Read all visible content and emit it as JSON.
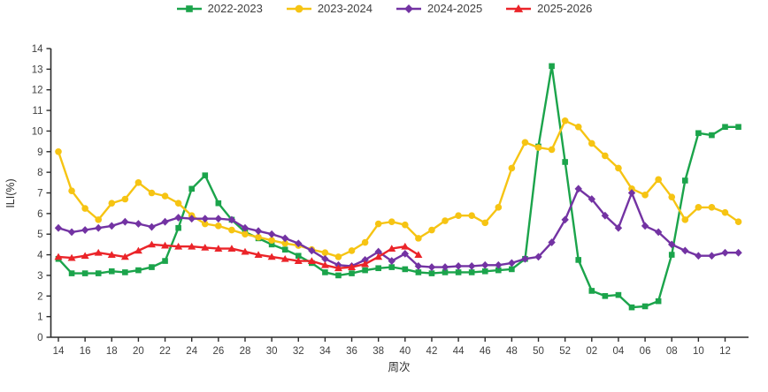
{
  "chart_data": {
    "type": "line",
    "title": "",
    "xlabel": "周次",
    "ylabel": "ILI(%)",
    "ylim": [
      0,
      14
    ],
    "y_tick_step": 1,
    "grid": false,
    "legend_position": "top",
    "x_labeled_every": "even week numbers",
    "categories": [
      "14",
      "15",
      "16",
      "17",
      "18",
      "19",
      "20",
      "21",
      "22",
      "23",
      "24",
      "25",
      "26",
      "27",
      "28",
      "29",
      "30",
      "31",
      "32",
      "33",
      "34",
      "35",
      "36",
      "37",
      "38",
      "39",
      "40",
      "41",
      "42",
      "43",
      "44",
      "45",
      "46",
      "47",
      "48",
      "49",
      "50",
      "51",
      "52",
      "01",
      "02",
      "03",
      "04",
      "05",
      "06",
      "07",
      "08",
      "09",
      "10",
      "11",
      "12",
      "13"
    ],
    "series": [
      {
        "name": "2022-2023",
        "color": "#1BA44B",
        "marker": "square",
        "values": [
          3.8,
          3.1,
          3.1,
          3.1,
          3.2,
          3.15,
          3.25,
          3.4,
          3.7,
          5.3,
          7.2,
          7.85,
          6.5,
          5.7,
          5.1,
          4.8,
          4.5,
          4.25,
          3.95,
          3.6,
          3.15,
          3.0,
          3.1,
          3.25,
          3.35,
          3.4,
          3.3,
          3.15,
          3.1,
          3.15,
          3.15,
          3.15,
          3.2,
          3.25,
          3.3,
          3.8,
          9.25,
          13.15,
          8.5,
          3.75,
          2.25,
          2.0,
          2.05,
          1.45,
          1.5,
          1.75,
          4.0,
          7.6,
          9.9,
          9.8,
          10.2,
          10.2
        ]
      },
      {
        "name": "2023-2024",
        "color": "#F6C413",
        "marker": "circle",
        "values": [
          9.0,
          7.1,
          6.25,
          5.7,
          6.5,
          6.7,
          7.5,
          7.0,
          6.85,
          6.5,
          5.9,
          5.5,
          5.4,
          5.2,
          5.0,
          4.85,
          4.7,
          4.55,
          4.45,
          4.25,
          4.1,
          3.9,
          4.2,
          4.6,
          5.5,
          5.6,
          5.45,
          4.8,
          5.2,
          5.65,
          5.9,
          5.9,
          5.55,
          6.3,
          8.2,
          9.45,
          9.2,
          9.1,
          10.5,
          10.2,
          9.4,
          8.8,
          8.2,
          7.2,
          6.9,
          7.65,
          6.8,
          5.7,
          6.3,
          6.3,
          6.05,
          5.6
        ]
      },
      {
        "name": "2024-2025",
        "color": "#7333A3",
        "marker": "diamond",
        "values": [
          5.3,
          5.1,
          5.2,
          5.3,
          5.4,
          5.6,
          5.5,
          5.35,
          5.6,
          5.8,
          5.75,
          5.75,
          5.75,
          5.7,
          5.3,
          5.15,
          5.0,
          4.8,
          4.55,
          4.2,
          3.8,
          3.5,
          3.45,
          3.75,
          4.15,
          3.7,
          4.05,
          3.45,
          3.4,
          3.4,
          3.45,
          3.45,
          3.5,
          3.5,
          3.6,
          3.8,
          3.9,
          4.6,
          5.7,
          7.2,
          6.7,
          5.9,
          5.3,
          7.0,
          5.4,
          5.1,
          4.5,
          4.2,
          3.95,
          3.95,
          4.1,
          4.1
        ]
      },
      {
        "name": "2025-2026",
        "color": "#EB2429",
        "marker": "triangle",
        "values": [
          3.9,
          3.85,
          3.95,
          4.1,
          4.0,
          3.9,
          4.2,
          4.5,
          4.45,
          4.4,
          4.4,
          4.35,
          4.3,
          4.3,
          4.15,
          4.0,
          3.9,
          3.8,
          3.7,
          3.7,
          3.5,
          3.35,
          3.4,
          3.55,
          3.9,
          4.3,
          4.4,
          4.0
        ]
      }
    ]
  }
}
